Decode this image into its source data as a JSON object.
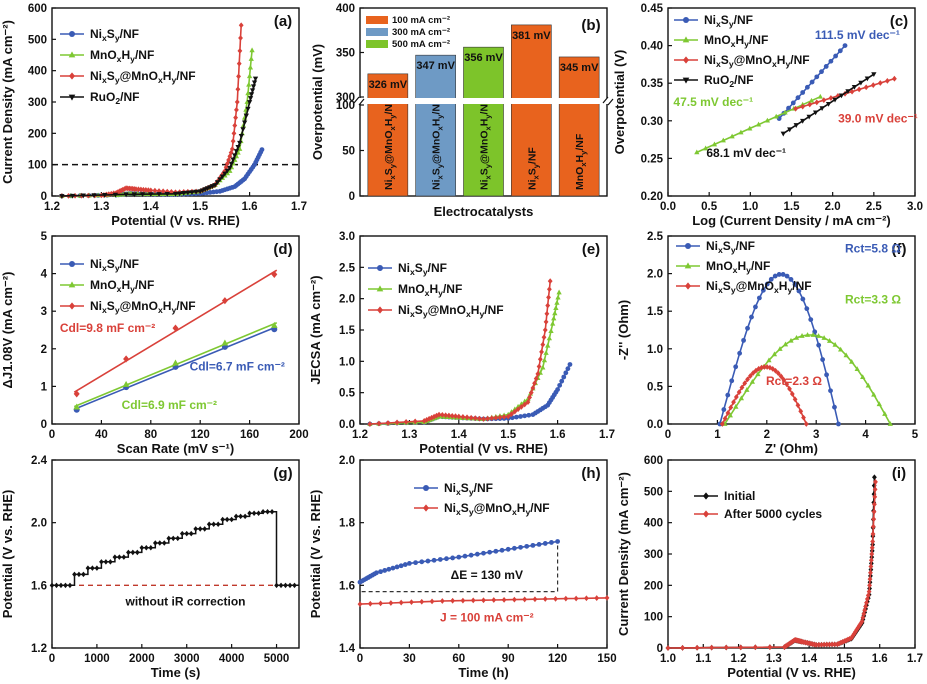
{
  "chart_data": [
    {
      "panel": "(a)",
      "type": "line",
      "xlabel": "Potential (V vs. RHE)",
      "ylabel": "Current Density (mA cm⁻²)",
      "xlim": [
        1.2,
        1.7
      ],
      "ylim": [
        0,
        600
      ],
      "xticks": [
        1.2,
        1.3,
        1.4,
        1.5,
        1.6,
        1.7
      ],
      "yticks": [
        0,
        100,
        200,
        300,
        400,
        500,
        600
      ],
      "reference_line": {
        "y": 100,
        "style": "dashed"
      },
      "legend_position": "top-left",
      "series": [
        {
          "name": "NixSy/NF",
          "color": "#3a5bb5",
          "marker": "circle",
          "points": [
            [
              1.22,
              0
            ],
            [
              1.33,
              3
            ],
            [
              1.36,
              8
            ],
            [
              1.4,
              6
            ],
            [
              1.45,
              5
            ],
            [
              1.5,
              8
            ],
            [
              1.54,
              15
            ],
            [
              1.57,
              30
            ],
            [
              1.59,
              55
            ],
            [
              1.61,
              100
            ],
            [
              1.625,
              148
            ]
          ]
        },
        {
          "name": "MnOxHy/NF",
          "color": "#7ec832",
          "marker": "triangle",
          "points": [
            [
              1.22,
              0
            ],
            [
              1.33,
              3
            ],
            [
              1.36,
              8
            ],
            [
              1.4,
              6
            ],
            [
              1.45,
              6
            ],
            [
              1.5,
              15
            ],
            [
              1.53,
              35
            ],
            [
              1.56,
              80
            ],
            [
              1.58,
              150
            ],
            [
              1.595,
              300
            ],
            [
              1.605,
              465
            ]
          ]
        },
        {
          "name": "NixSy@MnOxHy/NF",
          "color": "#d9413a",
          "marker": "diamond",
          "points": [
            [
              1.22,
              0
            ],
            [
              1.3,
              2
            ],
            [
              1.33,
              10
            ],
            [
              1.35,
              25
            ],
            [
              1.37,
              22
            ],
            [
              1.4,
              18
            ],
            [
              1.45,
              12
            ],
            [
              1.5,
              15
            ],
            [
              1.53,
              35
            ],
            [
              1.55,
              80
            ],
            [
              1.565,
              150
            ],
            [
              1.575,
              300
            ],
            [
              1.583,
              545
            ]
          ]
        },
        {
          "name": "RuO2/NF",
          "color": "#111111",
          "marker": "triangle-down",
          "points": [
            [
              1.22,
              0
            ],
            [
              1.35,
              5
            ],
            [
              1.45,
              7
            ],
            [
              1.5,
              15
            ],
            [
              1.53,
              35
            ],
            [
              1.56,
              90
            ],
            [
              1.58,
              170
            ],
            [
              1.6,
              300
            ],
            [
              1.612,
              375
            ]
          ]
        }
      ]
    },
    {
      "panel": "(b)",
      "type": "bar",
      "xlabel": "Electrocatalysts",
      "ylabel": "Overpotential (mV)",
      "yticks": [
        0,
        50,
        100,
        300,
        350,
        400
      ],
      "axis_break": [
        100,
        300
      ],
      "legend_position": "top-left",
      "categories": [
        "NixSy@MnOxHy/NF",
        "NixSy@MnOxHy/NF",
        "NixSy@MnOxHy/NF",
        "NixSy/NF",
        "MnOxHy/NF"
      ],
      "values": [
        326,
        347,
        356,
        381,
        345
      ],
      "value_labels": [
        "326 mV",
        "347 mV",
        "356 mV",
        "381 mV",
        "345 mV"
      ],
      "bar_colors": [
        "#e8631e",
        "#6e9ac5",
        "#7dc42a",
        "#e8631e",
        "#e8631e"
      ],
      "legend": [
        {
          "label": "100 mA cm⁻²",
          "color": "#e8631e"
        },
        {
          "label": "300 mA cm⁻²",
          "color": "#6e9ac5"
        },
        {
          "label": "500 mA cm⁻²",
          "color": "#7dc42a"
        }
      ]
    },
    {
      "panel": "(c)",
      "type": "line",
      "xlabel": "Log (Current Density / mA cm⁻²)",
      "ylabel": "Overpotential (V)",
      "xlim": [
        0.0,
        3.0
      ],
      "ylim": [
        0.2,
        0.45
      ],
      "xticks": [
        0.0,
        0.5,
        1.0,
        1.5,
        2.0,
        2.5,
        3.0
      ],
      "yticks": [
        0.2,
        0.25,
        0.3,
        0.35,
        0.4,
        0.45
      ],
      "legend_position": "top-left",
      "series": [
        {
          "name": "NixSy/NF",
          "color": "#3a5bb5",
          "marker": "circle",
          "points": [
            [
              1.35,
              0.303
            ],
            [
              2.15,
              0.4
            ]
          ],
          "annotation": "111.5 mV dec⁻¹"
        },
        {
          "name": "MnOxHy/NF",
          "color": "#7ec832",
          "marker": "triangle",
          "points": [
            [
              0.35,
              0.258
            ],
            [
              1.85,
              0.332
            ]
          ],
          "annotation": "47.5 mV dec⁻¹"
        },
        {
          "name": "NixSy@MnOxHy/NF",
          "color": "#d9413a",
          "marker": "diamond",
          "points": [
            [
              1.55,
              0.316
            ],
            [
              2.75,
              0.356
            ]
          ],
          "annotation": "39.0 mV dec⁻¹"
        },
        {
          "name": "RuO2/NF",
          "color": "#111111",
          "marker": "triangle-down",
          "points": [
            [
              1.4,
              0.283
            ],
            [
              2.5,
              0.362
            ]
          ],
          "annotation": "68.1 mV dec⁻¹"
        }
      ]
    },
    {
      "panel": "(d)",
      "type": "scatter",
      "xlabel": "Scan Rate (mV s⁻¹)",
      "ylabel": "ΔJ1.08V (mA cm⁻²)",
      "xlim": [
        0,
        200
      ],
      "ylim": [
        0,
        5
      ],
      "xticks": [
        0,
        40,
        80,
        120,
        160,
        200
      ],
      "yticks": [
        0,
        1,
        2,
        3,
        4,
        5
      ],
      "legend_position": "top-left",
      "series": [
        {
          "name": "NixSy/NF",
          "color": "#3a5bb5",
          "marker": "circle",
          "x": [
            20,
            60,
            100,
            140,
            180
          ],
          "y": [
            0.38,
            0.98,
            1.52,
            2.05,
            2.52
          ],
          "annotation": "Cdl=6.7 mF cm⁻²"
        },
        {
          "name": "MnOxHy/NF",
          "color": "#7ec832",
          "marker": "triangle",
          "x": [
            20,
            60,
            100,
            140,
            180
          ],
          "y": [
            0.45,
            1.05,
            1.62,
            2.15,
            2.62
          ],
          "annotation": "Cdl=6.9 mF cm⁻²"
        },
        {
          "name": "NixSy@MnOxHy/NF",
          "color": "#d9413a",
          "marker": "diamond",
          "x": [
            20,
            60,
            100,
            140,
            180
          ],
          "y": [
            0.8,
            1.73,
            2.55,
            3.28,
            3.98
          ],
          "annotation": "Cdl=9.8 mF cm⁻²"
        }
      ]
    },
    {
      "panel": "(e)",
      "type": "line",
      "xlabel": "Potential (V vs. RHE)",
      "ylabel": "JECSA (mA cm⁻²)",
      "xlim": [
        1.2,
        1.7
      ],
      "ylim": [
        0.0,
        3.0
      ],
      "xticks": [
        1.2,
        1.3,
        1.4,
        1.5,
        1.6,
        1.7
      ],
      "yticks": [
        0.0,
        0.5,
        1.0,
        1.5,
        2.0,
        2.5,
        3.0
      ],
      "legend_position": "top-left",
      "series": [
        {
          "name": "NixSy/NF",
          "color": "#3a5bb5",
          "marker": "circle",
          "points": [
            [
              1.22,
              0
            ],
            [
              1.33,
              0.03
            ],
            [
              1.36,
              0.12
            ],
            [
              1.4,
              0.1
            ],
            [
              1.45,
              0.08
            ],
            [
              1.5,
              0.09
            ],
            [
              1.55,
              0.15
            ],
            [
              1.58,
              0.3
            ],
            [
              1.6,
              0.55
            ],
            [
              1.625,
              0.95
            ]
          ]
        },
        {
          "name": "MnOxHy/NF",
          "color": "#7ec832",
          "marker": "triangle",
          "points": [
            [
              1.22,
              0
            ],
            [
              1.33,
              0.03
            ],
            [
              1.36,
              0.12
            ],
            [
              1.4,
              0.1
            ],
            [
              1.45,
              0.08
            ],
            [
              1.5,
              0.15
            ],
            [
              1.54,
              0.4
            ],
            [
              1.57,
              0.9
            ],
            [
              1.59,
              1.6
            ],
            [
              1.603,
              2.1
            ]
          ]
        },
        {
          "name": "NixSy@MnOxHy/NF",
          "color": "#d9413a",
          "marker": "diamond",
          "points": [
            [
              1.22,
              0
            ],
            [
              1.33,
              0.05
            ],
            [
              1.36,
              0.15
            ],
            [
              1.4,
              0.12
            ],
            [
              1.45,
              0.08
            ],
            [
              1.5,
              0.12
            ],
            [
              1.54,
              0.35
            ],
            [
              1.56,
              0.8
            ],
            [
              1.575,
              1.5
            ],
            [
              1.585,
              2.28
            ]
          ]
        }
      ]
    },
    {
      "panel": "(f)",
      "type": "line",
      "xlabel": "Z' (Ohm)",
      "ylabel": "-Z'' (Ohm)",
      "xlim": [
        0,
        5
      ],
      "ylim": [
        0.0,
        2.5
      ],
      "xticks": [
        0,
        1,
        2,
        3,
        4,
        5
      ],
      "yticks": [
        0.0,
        0.5,
        1.0,
        1.5,
        2.0,
        2.5
      ],
      "legend_position": "top-left",
      "series": [
        {
          "name": "NixSy/NF",
          "color": "#3a5bb5",
          "marker": "circle",
          "arc": {
            "start": 1.05,
            "end": 3.45,
            "peak": 2.15
          },
          "annotation": "Rct=5.8 Ω"
        },
        {
          "name": "MnOxHy/NF",
          "color": "#7ec832",
          "marker": "triangle",
          "arc": {
            "start": 1.15,
            "end": 4.5,
            "peak": 1.28
          },
          "annotation": "Rct=3.3 Ω"
        },
        {
          "name": "NixSy@MnOxHy/NF",
          "color": "#d9413a",
          "marker": "diamond",
          "arc": {
            "start": 1.1,
            "end": 2.8,
            "peak": 0.82
          },
          "annotation": "Rct=2.3 Ω"
        }
      ]
    },
    {
      "panel": "(g)",
      "type": "line",
      "xlabel": "Time (s)",
      "ylabel": "Potential (V vs. RHE)",
      "xlim": [
        0,
        5500
      ],
      "ylim": [
        1.2,
        2.4
      ],
      "xticks": [
        0,
        1000,
        2000,
        3000,
        4000,
        5000
      ],
      "yticks": [
        1.2,
        1.6,
        2.0,
        2.4
      ],
      "annotation": "without iR correction",
      "reference_line": {
        "y": 1.6,
        "style": "dashed",
        "color": "#c0392b"
      },
      "series": [
        {
          "color": "#111111",
          "marker": "diamond",
          "steps": [
            [
              0,
              500,
              1.6
            ],
            [
              500,
              800,
              1.67
            ],
            [
              800,
              1100,
              1.71
            ],
            [
              1100,
              1400,
              1.75
            ],
            [
              1400,
              1700,
              1.78
            ],
            [
              1700,
              2000,
              1.81
            ],
            [
              2000,
              2300,
              1.84
            ],
            [
              2300,
              2600,
              1.87
            ],
            [
              2600,
              2900,
              1.9
            ],
            [
              2900,
              3200,
              1.93
            ],
            [
              3200,
              3500,
              1.96
            ],
            [
              3500,
              3800,
              1.99
            ],
            [
              3800,
              4100,
              2.02
            ],
            [
              4100,
              4400,
              2.04
            ],
            [
              4400,
              4700,
              2.06
            ],
            [
              4700,
              5000,
              2.07
            ],
            [
              5000,
              5500,
              1.6
            ]
          ]
        }
      ]
    },
    {
      "panel": "(h)",
      "type": "line",
      "xlabel": "Time (h)",
      "ylabel": "Potential (V vs. RHE)",
      "xlim": [
        0,
        150
      ],
      "ylim": [
        1.4,
        2.0
      ],
      "xticks": [
        0,
        30,
        60,
        90,
        120,
        150
      ],
      "yticks": [
        1.4,
        1.6,
        1.8,
        2.0
      ],
      "legend_position": "top-center",
      "annotations": [
        "ΔE = 130 mV",
        "J = 100 mA cm⁻²"
      ],
      "series": [
        {
          "name": "NixSy/NF",
          "color": "#3a5bb5",
          "marker": "circle",
          "x_end": 120,
          "points": [
            [
              0,
              1.61
            ],
            [
              10,
              1.64
            ],
            [
              30,
              1.67
            ],
            [
              60,
              1.69
            ],
            [
              90,
              1.715
            ],
            [
              120,
              1.74
            ]
          ]
        },
        {
          "name": "NixSy@MnOxHy/NF",
          "color": "#d9413a",
          "marker": "diamond",
          "x_end": 150,
          "points": [
            [
              0,
              1.54
            ],
            [
              50,
              1.55
            ],
            [
              100,
              1.555
            ],
            [
              150,
              1.56
            ]
          ]
        }
      ]
    },
    {
      "panel": "(i)",
      "type": "line",
      "xlabel": "Potential (V vs. RHE)",
      "ylabel": "Current Density (mA cm⁻²)",
      "xlim": [
        1.0,
        1.7
      ],
      "ylim": [
        0,
        600
      ],
      "xticks": [
        1.0,
        1.1,
        1.2,
        1.3,
        1.4,
        1.5,
        1.6,
        1.7
      ],
      "yticks": [
        0,
        100,
        200,
        300,
        400,
        500,
        600
      ],
      "legend_position": "top-left",
      "series": [
        {
          "name": "Initial",
          "color": "#111111",
          "marker": "diamond",
          "points": [
            [
              1.0,
              0
            ],
            [
              1.33,
              3
            ],
            [
              1.36,
              25
            ],
            [
              1.38,
              20
            ],
            [
              1.42,
              10
            ],
            [
              1.48,
              12
            ],
            [
              1.52,
              30
            ],
            [
              1.55,
              80
            ],
            [
              1.57,
              170
            ],
            [
              1.58,
              330
            ],
            [
              1.585,
              545
            ]
          ]
        },
        {
          "name": "After 5000 cycles",
          "color": "#d9413a",
          "marker": "diamond",
          "points": [
            [
              1.0,
              0
            ],
            [
              1.33,
              3
            ],
            [
              1.36,
              26
            ],
            [
              1.38,
              20
            ],
            [
              1.42,
              10
            ],
            [
              1.48,
              12
            ],
            [
              1.52,
              32
            ],
            [
              1.55,
              85
            ],
            [
              1.57,
              180
            ],
            [
              1.58,
              340
            ],
            [
              1.588,
              530
            ]
          ]
        }
      ]
    }
  ]
}
